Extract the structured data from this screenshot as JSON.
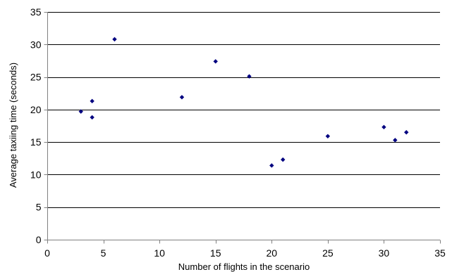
{
  "chart_data": {
    "type": "scatter",
    "title": "",
    "xlabel": "Number of flights in the scenario",
    "ylabel": "Average taxiing time (seconds)",
    "xlim": [
      0,
      35
    ],
    "ylim": [
      0,
      35
    ],
    "xticks": [
      0,
      5,
      10,
      15,
      20,
      25,
      30,
      35
    ],
    "yticks": [
      0,
      5,
      10,
      15,
      20,
      25,
      30,
      35
    ],
    "grid": "horizontal",
    "legend": "none",
    "colors": {
      "marker": "#000080",
      "grid": "#000000",
      "axis": "#808080"
    },
    "series": [
      {
        "points": [
          {
            "x": 3,
            "y": 19.7
          },
          {
            "x": 4,
            "y": 21.3
          },
          {
            "x": 4,
            "y": 18.8
          },
          {
            "x": 6,
            "y": 30.8
          },
          {
            "x": 12,
            "y": 21.9
          },
          {
            "x": 15,
            "y": 27.4
          },
          {
            "x": 18,
            "y": 25.1
          },
          {
            "x": 20,
            "y": 11.4
          },
          {
            "x": 21,
            "y": 12.3
          },
          {
            "x": 25,
            "y": 15.9
          },
          {
            "x": 30,
            "y": 17.3
          },
          {
            "x": 31,
            "y": 15.3
          },
          {
            "x": 32,
            "y": 16.5
          }
        ]
      }
    ]
  }
}
